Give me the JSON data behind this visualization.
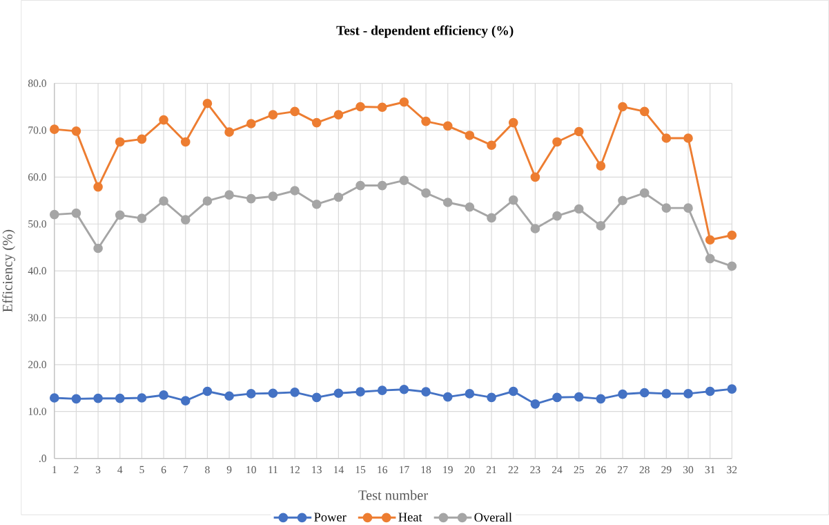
{
  "chart_data": {
    "type": "line",
    "title": "Test - dependent efficiency (%)",
    "xlabel": "Test number",
    "ylabel": "Efficiency (%)",
    "categories": [
      "1",
      "2",
      "3",
      "4",
      "5",
      "6",
      "7",
      "8",
      "9",
      "10",
      "11",
      "12",
      "13",
      "14",
      "15",
      "16",
      "17",
      "18",
      "19",
      "20",
      "21",
      "22",
      "23",
      "24",
      "25",
      "26",
      "27",
      "28",
      "29",
      "30",
      "31",
      "32"
    ],
    "series": [
      {
        "name": "Power",
        "color": "#4472c4",
        "values": [
          12.9,
          12.7,
          12.8,
          12.8,
          12.9,
          13.5,
          12.3,
          14.3,
          13.3,
          13.8,
          13.9,
          14.1,
          13.0,
          13.9,
          14.2,
          14.5,
          14.7,
          14.2,
          13.1,
          13.8,
          13.0,
          14.3,
          11.6,
          13.0,
          13.1,
          12.7,
          13.7,
          14.0,
          13.8,
          13.8,
          14.3,
          14.8
        ]
      },
      {
        "name": "Heat",
        "color": "#ed7d31",
        "values": [
          70.2,
          69.8,
          57.9,
          67.5,
          68.1,
          72.2,
          67.5,
          75.7,
          69.6,
          71.4,
          73.3,
          74.0,
          71.6,
          73.3,
          75.0,
          74.9,
          76.0,
          71.9,
          70.9,
          68.9,
          66.8,
          71.6,
          60.0,
          67.5,
          69.7,
          62.4,
          75.0,
          74.0,
          68.3,
          68.3,
          46.6,
          47.6
        ]
      },
      {
        "name": "Overall",
        "color": "#a5a5a5",
        "values": [
          52.0,
          52.3,
          44.8,
          51.9,
          51.2,
          54.9,
          50.9,
          54.9,
          56.2,
          55.4,
          55.9,
          57.1,
          54.2,
          55.7,
          58.2,
          58.2,
          59.3,
          56.6,
          54.6,
          53.6,
          51.3,
          55.1,
          49.0,
          51.7,
          53.2,
          49.6,
          55.0,
          56.6,
          53.4,
          53.4,
          42.6,
          41.0
        ]
      }
    ],
    "ylim": [
      0,
      80
    ],
    "yticks": [
      {
        "value": 0,
        "label": ".0"
      },
      {
        "value": 10,
        "label": "10.0"
      },
      {
        "value": 20,
        "label": "20.0"
      },
      {
        "value": 30,
        "label": "30.0"
      },
      {
        "value": 40,
        "label": "40.0"
      },
      {
        "value": 50,
        "label": "50.0"
      },
      {
        "value": 60,
        "label": "60.0"
      },
      {
        "value": 70,
        "label": "70.0"
      },
      {
        "value": 80,
        "label": "80.0"
      }
    ],
    "grid": true,
    "legend": "bottom",
    "marker": "circle",
    "line_style": "solid"
  }
}
